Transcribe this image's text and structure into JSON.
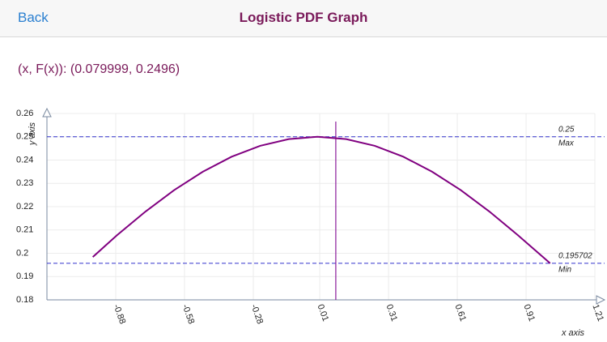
{
  "header": {
    "back": "Back",
    "title": "Logistic PDF Graph"
  },
  "readout": "(x, F(x)): (0.079999, 0.2496)",
  "chart_data": {
    "type": "line",
    "x_label": "x axis",
    "y_label": "y axis",
    "x": [
      -0.98,
      -0.875,
      -0.75,
      -0.625,
      -0.5,
      -0.375,
      -0.25,
      -0.125,
      0,
      0.125,
      0.25,
      0.375,
      0.5,
      0.625,
      0.75,
      0.875,
      1.015
    ],
    "series": [
      {
        "color": "#800080",
        "values": [
          0.1984,
          0.2077,
          0.2179,
          0.2271,
          0.235,
          0.2414,
          0.2461,
          0.249,
          0.25,
          0.249,
          0.2461,
          0.2414,
          0.235,
          0.2271,
          0.2179,
          0.2077,
          0.1957
        ]
      }
    ],
    "xlim": [
      -1.18,
      1.21
    ],
    "ylim": [
      0.18,
      0.26
    ],
    "xticks": [
      -0.88,
      -0.58,
      -0.28,
      0.01,
      0.31,
      0.61,
      0.91,
      1.21
    ],
    "yticks": [
      0.18,
      0.19,
      0.2,
      0.21,
      0.22,
      0.23,
      0.24,
      0.25,
      0.26
    ],
    "grid": true,
    "max_line": {
      "value": 0.25,
      "label": "Max"
    },
    "min_line": {
      "value": 0.195702,
      "label": "Min"
    },
    "ref_line_color": "#3333cc",
    "cursor": {
      "x": 0.079999,
      "color": "#8a1a9a"
    }
  }
}
